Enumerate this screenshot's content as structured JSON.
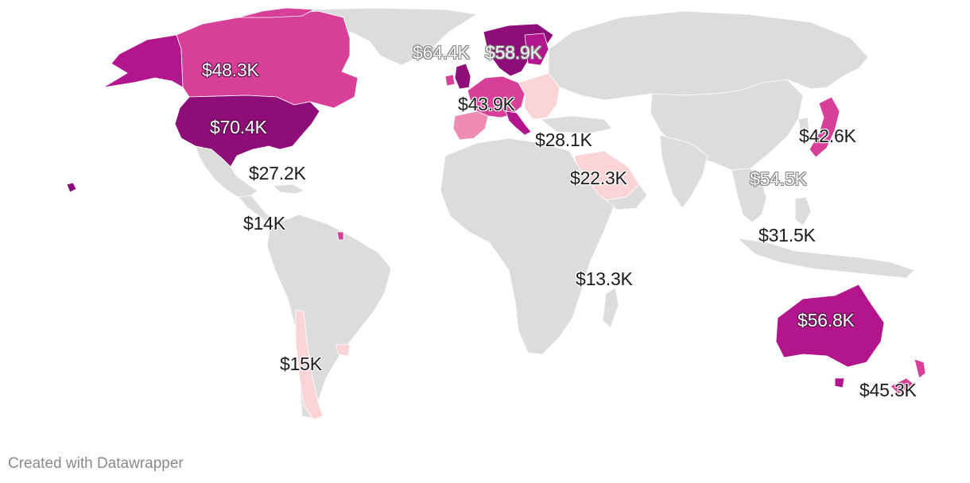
{
  "colors": {
    "land": "#dcdcdc",
    "border": "#ffffff",
    "scale_darkest": "#8e0d78",
    "scale_dark": "#b3168c",
    "scale_mid": "#d83f99",
    "scale_light": "#ee8cb3",
    "scale_lightest": "#fbd4d6"
  },
  "labels": {
    "usa": "$70.4K",
    "canada": "$48.3K",
    "mexico": "$27.2K",
    "central_america": "$14K",
    "chile": "$15K",
    "uk": "$64.4K",
    "scandinavia": "$58.9K",
    "europe": "$43.9K",
    "east_med": "$28.1K",
    "saudi": "$22.3K",
    "south_africa": "$13.3K",
    "japan": "$42.6K",
    "hong_kong": "$54.5K",
    "southeast_asia": "$31.5K",
    "australia": "$56.8K",
    "new_zealand": "$45.3K"
  },
  "footer": {
    "credit": "Created with Datawrapper"
  }
}
